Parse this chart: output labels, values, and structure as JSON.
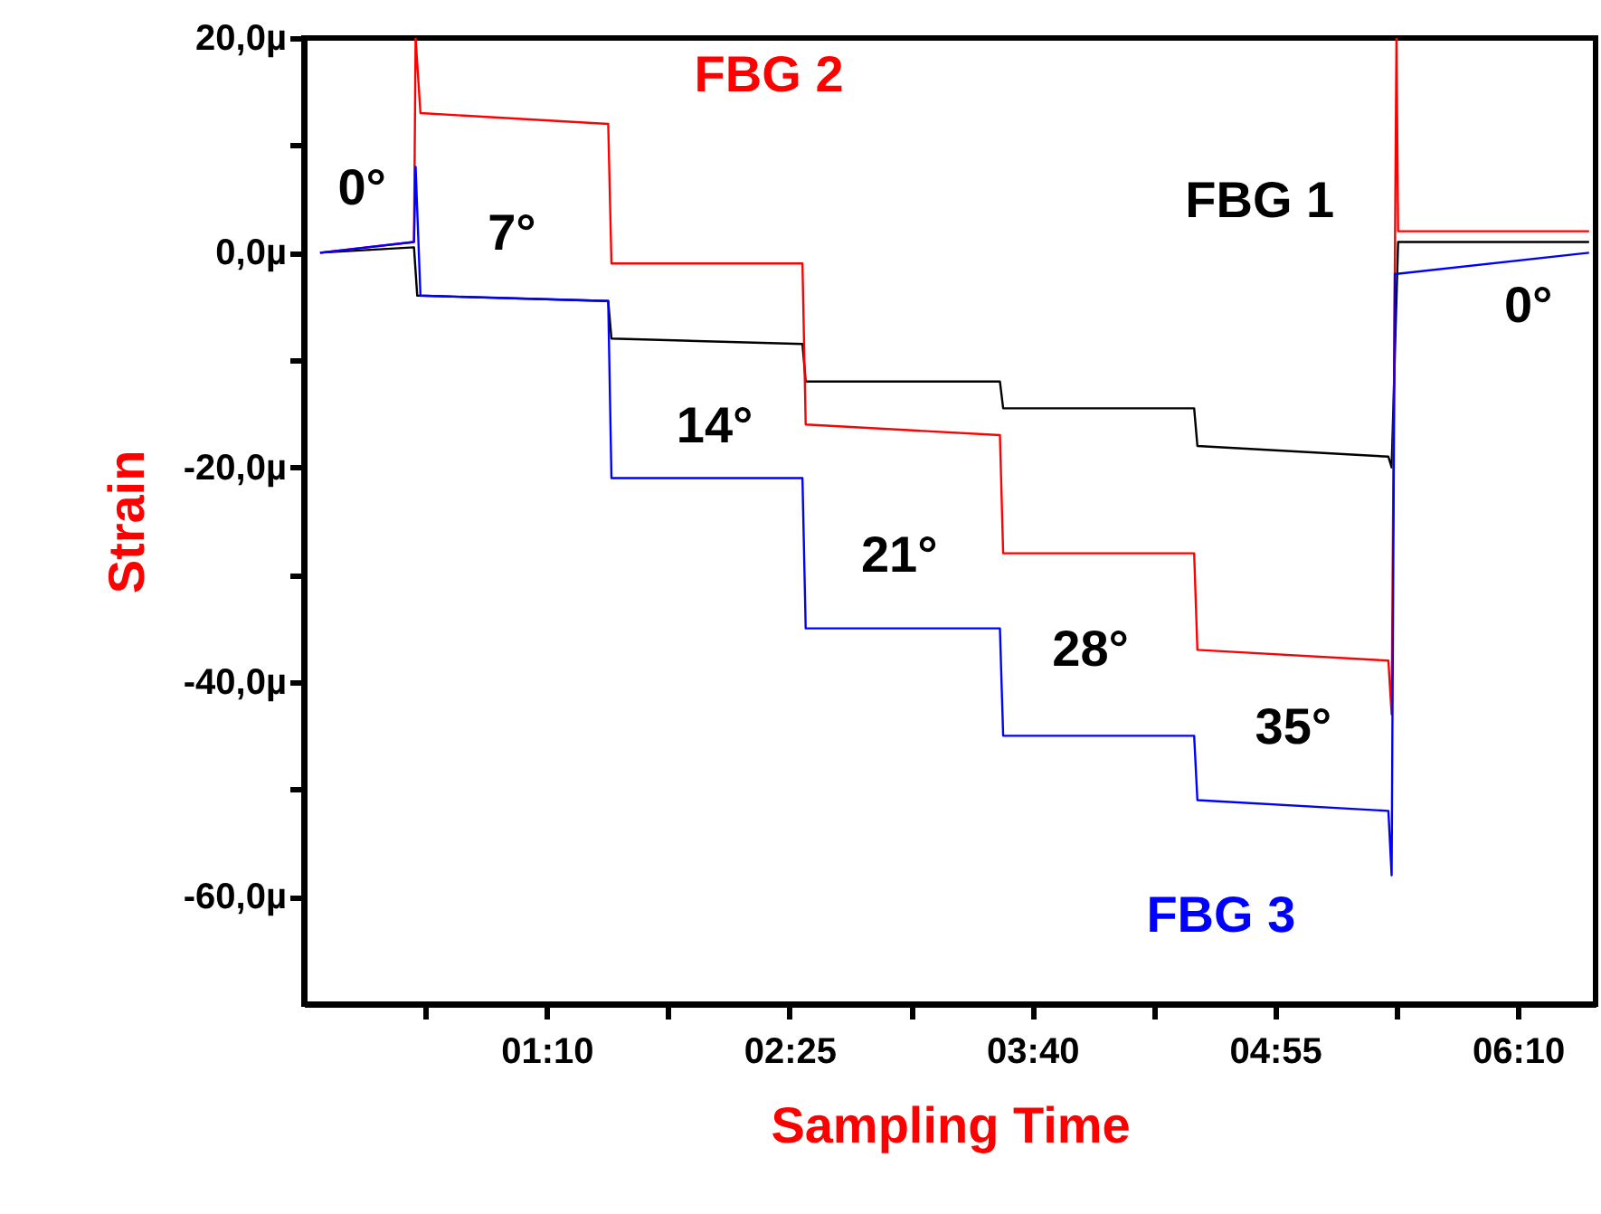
{
  "chart_data": {
    "type": "line",
    "xlabel": "Sampling Time",
    "ylabel": "Strain",
    "xlim": [
      -5,
      394
    ],
    "ylim": [
      -70,
      20
    ],
    "xticks": [
      {
        "value": 32.5,
        "label": null
      },
      {
        "value": 70,
        "label": "01:10"
      },
      {
        "value": 107.5,
        "label": null
      },
      {
        "value": 145,
        "label": "02:25"
      },
      {
        "value": 182.5,
        "label": null
      },
      {
        "value": 220,
        "label": "03:40"
      },
      {
        "value": 257.5,
        "label": null
      },
      {
        "value": 295,
        "label": "04:55"
      },
      {
        "value": 332.5,
        "label": null
      },
      {
        "value": 370,
        "label": "06:10"
      }
    ],
    "yticks": [
      {
        "value": 20,
        "label": "20,0µ"
      },
      {
        "value": 10,
        "label": null
      },
      {
        "value": 0,
        "label": "0,0µ"
      },
      {
        "value": -10,
        "label": null
      },
      {
        "value": -20,
        "label": "-20,0µ"
      },
      {
        "value": -30,
        "label": null
      },
      {
        "value": -40,
        "label": "-40,0µ"
      },
      {
        "value": -50,
        "label": null
      },
      {
        "value": -60,
        "label": "-60,0µ"
      }
    ],
    "grid": false,
    "legend": false,
    "series": [
      {
        "name": "FBG 1",
        "color": "#000000",
        "x": [
          0,
          29,
          30,
          89,
          90,
          149,
          150,
          210,
          211,
          270,
          271,
          330,
          331,
          333,
          392
        ],
        "values": [
          0,
          0.5,
          -4,
          -4.5,
          -8,
          -8.5,
          -12,
          -12,
          -14.5,
          -14.5,
          -18,
          -19,
          -20,
          1,
          1
        ]
      },
      {
        "name": "FBG 2",
        "color": "#ff0000",
        "x": [
          0,
          29,
          29.5,
          31,
          89,
          90,
          149,
          150,
          210,
          211,
          270,
          271,
          330,
          331,
          332.5,
          333,
          392
        ],
        "values": [
          0,
          1,
          20,
          13,
          12,
          -1,
          -1,
          -16,
          -17,
          -28,
          -28,
          -37,
          -38,
          -43,
          20,
          2,
          2
        ]
      },
      {
        "name": "FBG 3",
        "color": "#0000ff",
        "x": [
          0,
          29,
          29.5,
          31,
          89,
          90,
          149,
          150,
          210,
          211,
          270,
          271,
          330,
          331,
          332,
          392
        ],
        "values": [
          0,
          1,
          8,
          -4,
          -4.5,
          -21,
          -21,
          -35,
          -35,
          -45,
          -45,
          -51,
          -52,
          -58,
          -2,
          0
        ]
      }
    ],
    "annotations": [
      "0°",
      "7°",
      "14°",
      "21°",
      "28°",
      "35°",
      "0°"
    ]
  }
}
